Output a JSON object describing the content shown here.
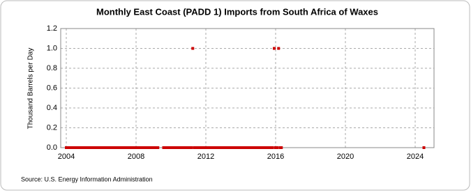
{
  "chart_data": {
    "type": "scatter",
    "title": "Monthly East Coast (PADD 1) Imports from South Africa of Waxes",
    "y_label": "Thousand Barrels per Day",
    "source": "Source: U.S. Energy Information Administration",
    "xlim": [
      2003.68,
      2025.08
    ],
    "ylim": [
      0,
      1.2
    ],
    "xticks": [
      2004,
      2008,
      2012,
      2016,
      2020,
      2024
    ],
    "yticks": [
      {
        "value": 0,
        "label": "0.0"
      },
      0.2,
      0.4,
      0.6,
      0.8,
      {
        "value": 1,
        "label": "1.0"
      },
      1.2
    ],
    "grid": true,
    "series": [
      {
        "color": "#cc0000",
        "x": [
          2004,
          2004.08,
          2004.17,
          2004.25,
          2004.33,
          2004.42,
          2004.5,
          2004.58,
          2004.67,
          2004.75,
          2004.83,
          2004.92,
          2005,
          2005.08,
          2005.17,
          2005.25,
          2005.33,
          2005.42,
          2005.5,
          2005.58,
          2005.67,
          2005.75,
          2005.83,
          2005.92,
          2006,
          2006.08,
          2006.17,
          2006.25,
          2006.33,
          2006.42,
          2006.5,
          2006.58,
          2006.67,
          2006.75,
          2006.83,
          2006.92,
          2007,
          2007.08,
          2007.17,
          2007.25,
          2007.33,
          2007.42,
          2007.5,
          2007.58,
          2007.67,
          2007.75,
          2007.83,
          2007.92,
          2008,
          2008.08,
          2008.17,
          2008.25,
          2008.33,
          2008.42,
          2008.5,
          2008.58,
          2008.67,
          2008.75,
          2008.83,
          2008.92,
          2009,
          2009.08,
          2009.17,
          2009.25,
          2009.58,
          2009.67,
          2009.75,
          2009.83,
          2009.92,
          2010,
          2010.08,
          2010.17,
          2010.25,
          2010.33,
          2010.42,
          2010.5,
          2010.58,
          2010.67,
          2010.75,
          2010.83,
          2010.92,
          2011,
          2011.08,
          2011.17,
          2011.25,
          2011.33,
          2011.42,
          2011.5,
          2011.58,
          2011.67,
          2011.75,
          2011.83,
          2011.92,
          2012,
          2012.08,
          2012.17,
          2012.25,
          2012.33,
          2012.42,
          2012.5,
          2012.58,
          2012.67,
          2012.75,
          2012.83,
          2012.92,
          2013,
          2013.08,
          2013.17,
          2013.25,
          2013.33,
          2013.42,
          2013.5,
          2013.58,
          2013.67,
          2013.75,
          2013.83,
          2013.92,
          2014,
          2014.08,
          2014.17,
          2014.25,
          2014.33,
          2014.42,
          2014.5,
          2014.58,
          2014.67,
          2014.75,
          2014.83,
          2014.92,
          2015,
          2015.08,
          2015.17,
          2015.25,
          2015.33,
          2015.42,
          2015.5,
          2015.58,
          2015.67,
          2015.75,
          2015.83,
          2015.92,
          2016,
          2016.08,
          2016.17,
          2016.25,
          2016.33,
          2024.5
        ],
        "values": [
          0,
          0,
          0,
          0,
          0,
          0,
          0,
          0,
          0,
          0,
          0,
          0,
          0,
          0,
          0,
          0,
          0,
          0,
          0,
          0,
          0,
          0,
          0,
          0,
          0,
          0,
          0,
          0,
          0,
          0,
          0,
          0,
          0,
          0,
          0,
          0,
          0,
          0,
          0,
          0,
          0,
          0,
          0,
          0,
          0,
          0,
          0,
          0,
          0,
          0,
          0,
          0,
          0,
          0,
          0,
          0,
          0,
          0,
          0,
          0,
          0,
          0,
          0,
          0,
          0,
          0,
          0,
          0,
          0,
          0,
          0,
          0,
          0,
          0,
          0,
          0,
          0,
          0,
          0,
          0,
          0,
          0,
          0,
          0,
          1,
          0,
          0,
          0,
          0,
          0,
          0,
          0,
          0,
          0,
          0,
          0,
          0,
          0,
          0,
          0,
          0,
          0,
          0,
          0,
          0,
          0,
          0,
          0,
          0,
          0,
          0,
          0,
          0,
          0,
          0,
          0,
          0,
          0,
          0,
          0,
          0,
          0,
          0,
          0,
          0,
          0,
          0,
          0,
          0,
          0,
          0,
          0,
          0,
          0,
          0,
          0,
          0,
          0,
          0,
          0,
          1,
          0,
          0,
          1,
          0,
          0,
          0
        ]
      }
    ]
  }
}
